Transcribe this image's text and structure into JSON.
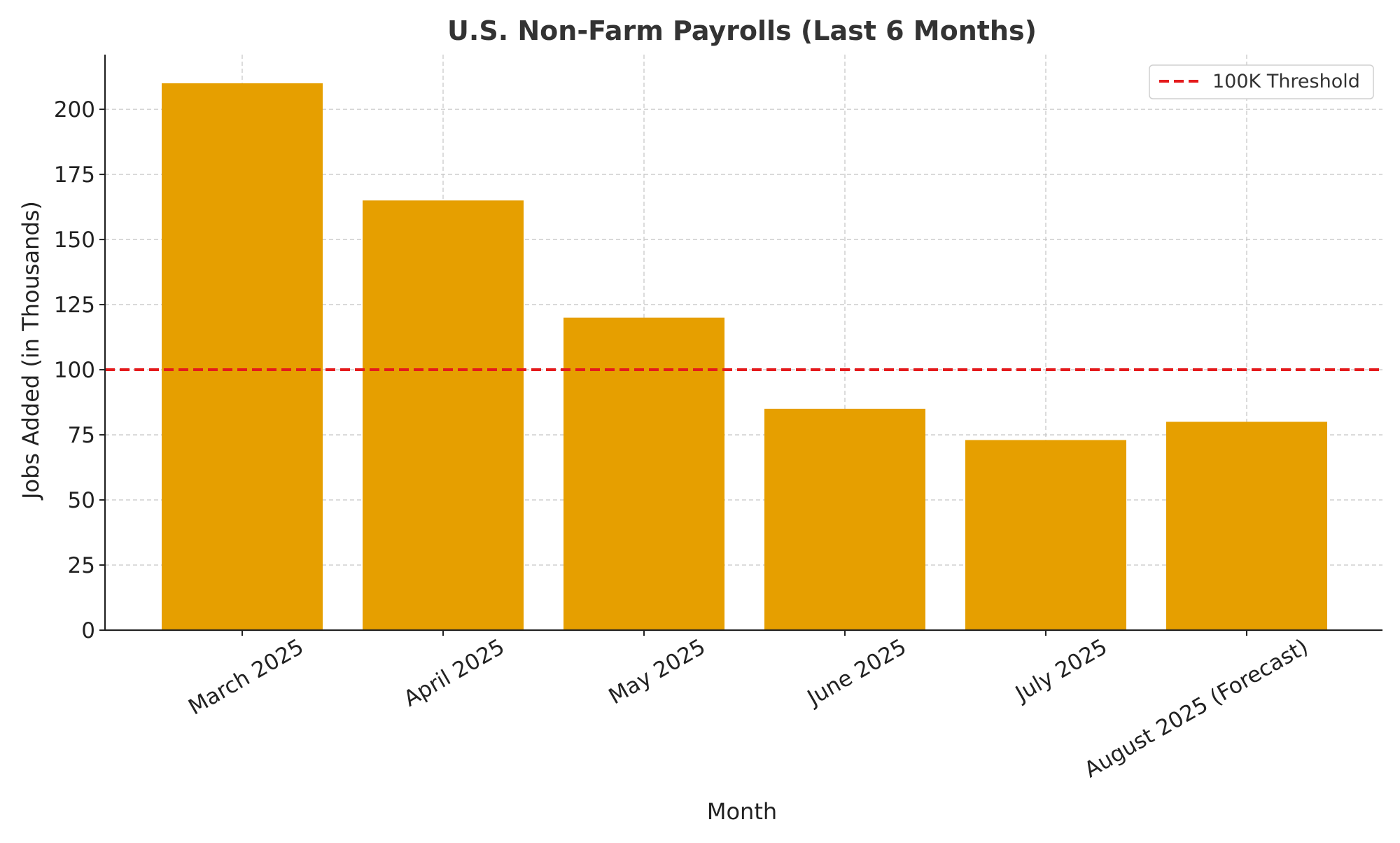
{
  "chart_data": {
    "type": "bar",
    "title": "U.S. Non-Farm Payrolls (Last 6 Months)",
    "xlabel": "Month",
    "ylabel": "Jobs Added (in Thousands)",
    "categories": [
      "March 2025",
      "April 2025",
      "May 2025",
      "June 2025",
      "July 2025",
      "August 2025 (Forecast)"
    ],
    "values": [
      210,
      165,
      120,
      85,
      73,
      80
    ],
    "ylim": [
      0,
      221
    ],
    "yticks": [
      0,
      25,
      50,
      75,
      100,
      125,
      150,
      175,
      200
    ],
    "grid": true,
    "bar_color": "#E69F00",
    "reference_line": {
      "value": 100,
      "label": "100K Threshold",
      "color": "#E41A1C",
      "style": "dashed"
    },
    "legend_position": "top-right"
  }
}
